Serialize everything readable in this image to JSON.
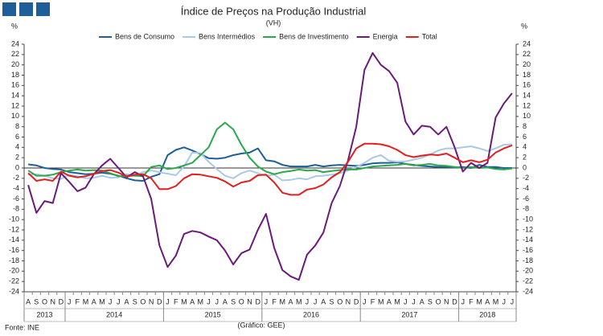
{
  "chart_data": {
    "type": "line",
    "title": "Índice de Preços na Produção Industrial",
    "subtitle": "(VH)",
    "y_label": "%",
    "y2_label": "%",
    "source": "Fonte: INE",
    "credit": "(Gráfico: GEE)",
    "categories": [
      "A",
      "S",
      "O",
      "N",
      "D",
      "J",
      "F",
      "M",
      "A",
      "M",
      "J",
      "J",
      "A",
      "S",
      "O",
      "N",
      "D",
      "J",
      "F",
      "M",
      "A",
      "M",
      "J",
      "J",
      "A",
      "S",
      "O",
      "N",
      "D",
      "J",
      "F",
      "M",
      "A",
      "M",
      "J",
      "J",
      "A",
      "S",
      "O",
      "N",
      "D",
      "J",
      "F",
      "M",
      "A",
      "M",
      "J",
      "J",
      "A",
      "S",
      "O",
      "N",
      "D",
      "J",
      "F",
      "M",
      "A",
      "M",
      "J",
      "J"
    ],
    "years": [
      "2013",
      "2014",
      "2015",
      "2016",
      "2017",
      "2018"
    ],
    "ylim": [
      -24,
      24
    ],
    "yticks": [
      -24,
      -22,
      -20,
      -18,
      -16,
      -14,
      -12,
      -10,
      -8,
      -6,
      -4,
      -2,
      0,
      2,
      4,
      6,
      8,
      10,
      12,
      14,
      16,
      18,
      20,
      22,
      24
    ],
    "grid": false,
    "legend": "top",
    "series": [
      {
        "name": "Bens de Consumo",
        "color": "#1f5f99",
        "values": [
          0.7,
          0.5,
          0,
          -0.2,
          -0.3,
          -0.8,
          -1,
          -1.2,
          -1.1,
          -0.9,
          -1.1,
          -1.5,
          -2,
          -2.4,
          -2.5,
          -1.7,
          -1.2,
          2.5,
          3.5,
          4,
          3.4,
          2.7,
          1.9,
          1.8,
          2,
          2.5,
          2.8,
          3,
          3.8,
          1.5,
          1.3,
          0.6,
          0.3,
          0.3,
          0.3,
          0.6,
          0.3,
          0.5,
          0.6,
          0.5,
          0.4,
          0.6,
          0.9,
          1,
          1,
          1.1,
          0.8,
          0.6,
          0.4,
          0.3,
          0.2,
          0.2,
          0.1,
          0.2,
          0,
          0.6,
          0.2,
          0.2,
          0,
          0
        ]
      },
      {
        "name": "Bens Intermédios",
        "color": "#a9c9e6",
        "values": [
          -1.3,
          -1.2,
          -1.5,
          -2,
          -2.1,
          -1.3,
          -1.6,
          -2,
          -1.9,
          -1.5,
          -1.9,
          -1.8,
          -1.2,
          -1.5,
          -0.8,
          -0.5,
          -0.8,
          -1.1,
          -1.4,
          0.3,
          3,
          2.9,
          1.2,
          -0.2,
          -1.5,
          -2,
          -1,
          -0.5,
          -1,
          -1.5,
          -1.3,
          -2.4,
          -2.3,
          -2,
          -2.2,
          -1.6,
          -1.5,
          -1.3,
          -1,
          -0.5,
          0.2,
          1,
          2,
          2.5,
          1.4,
          1.2,
          1.3,
          1.6,
          2,
          2.6,
          3.4,
          3.8,
          3.8,
          4,
          4.2,
          3.8,
          3.3,
          3.8,
          4.5,
          4.6
        ]
      },
      {
        "name": "Bens de Investimento",
        "color": "#2ba84a",
        "values": [
          -0.5,
          -1.5,
          -1.5,
          -1.3,
          -0.8,
          -0.5,
          -0.3,
          -0.5,
          -0.4,
          -0.5,
          -1,
          -1.6,
          -1.5,
          -1.5,
          -1.6,
          0.2,
          0.5,
          -0.2,
          0,
          0.5,
          1,
          2.5,
          4,
          7.5,
          8.8,
          7.5,
          4.5,
          2,
          0.3,
          -0.7,
          -1.2,
          -0.8,
          -0.6,
          -0.3,
          -0.5,
          -0.4,
          -0.8,
          -0.6,
          -0.4,
          -0.3,
          -0.3,
          0,
          0.3,
          0.4,
          0.5,
          0.6,
          0.8,
          0.5,
          0.6,
          0.8,
          0.5,
          0.4,
          0.2,
          0,
          0.2,
          0,
          0.1,
          -0.2,
          -0.3,
          -0.1
        ]
      },
      {
        "name": "Energia",
        "color": "#6a1b7a",
        "values": [
          -3.3,
          -8.7,
          -6.4,
          -6.8,
          -1,
          -2.7,
          -4.5,
          -3.8,
          -1.2,
          0.5,
          1.8,
          0,
          -1.8,
          -0.8,
          -1.6,
          -6,
          -15,
          -19.2,
          -17,
          -12.8,
          -12.2,
          -12.5,
          -13.3,
          -14,
          -16,
          -18.7,
          -16.5,
          -15.8,
          -12,
          -8.9,
          -15.5,
          -19.8,
          -21,
          -21.7,
          -16.8,
          -15,
          -12.5,
          -6.8,
          -3.5,
          1.5,
          8,
          19,
          22.3,
          20,
          18.8,
          16.5,
          9,
          6.5,
          8.2,
          8,
          6.5,
          8,
          4,
          -0.7,
          1,
          0,
          1,
          9.8,
          12.5,
          14.5
        ]
      },
      {
        "name": "Total",
        "color": "#e02020",
        "values": [
          -1,
          -2.5,
          -2.2,
          -2.5,
          -0.7,
          -1.5,
          -1.8,
          -1.6,
          -1.1,
          -0.6,
          -0.4,
          -0.9,
          -1.7,
          -1.3,
          -1.2,
          -2,
          -4.1,
          -4.1,
          -3.5,
          -2,
          -1.2,
          -1.3,
          -1.6,
          -1.9,
          -2.6,
          -3.6,
          -2.8,
          -2.5,
          -1.4,
          -1.3,
          -2.8,
          -4.8,
          -5.2,
          -5.2,
          -4.2,
          -3.9,
          -3.2,
          -1.8,
          -0.8,
          1.2,
          3.8,
          4.7,
          4.7,
          4.6,
          4.2,
          3.5,
          2.5,
          2.1,
          2.4,
          2.6,
          2.5,
          2.8,
          2,
          1.1,
          1.5,
          1.1,
          1.6,
          3,
          3.8,
          4.4
        ]
      }
    ]
  }
}
